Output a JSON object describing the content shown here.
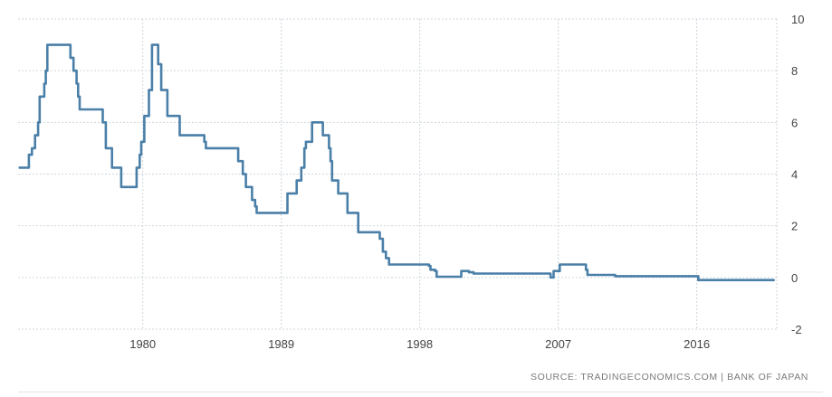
{
  "source_label": "SOURCE: TRADINGECONOMICS.COM | BANK OF JAPAN",
  "colors": {
    "line": "#4a7fa8",
    "grid": "#cfd6dc",
    "text": "#444444"
  },
  "chart_data": {
    "type": "line",
    "title": "",
    "xlabel": "",
    "ylabel": "",
    "xlim": [
      1971.9,
      2021.2
    ],
    "ylim": [
      -2,
      10
    ],
    "x_ticks": [
      1980,
      1989,
      1998,
      2007,
      2016
    ],
    "y_ticks": [
      10,
      8,
      6,
      4,
      2,
      0,
      -2
    ],
    "grid": true,
    "y_axis_side": "right",
    "series": [
      {
        "step": true,
        "points": [
          [
            1972.0,
            4.25
          ],
          [
            1972.5,
            4.25
          ],
          [
            1972.6,
            4.75
          ],
          [
            1972.8,
            5.0
          ],
          [
            1973.0,
            5.5
          ],
          [
            1973.2,
            6.0
          ],
          [
            1973.3,
            7.0
          ],
          [
            1973.6,
            7.5
          ],
          [
            1973.7,
            8.0
          ],
          [
            1973.8,
            9.0
          ],
          [
            1975.1,
            9.0
          ],
          [
            1975.3,
            8.5
          ],
          [
            1975.5,
            8.0
          ],
          [
            1975.7,
            7.5
          ],
          [
            1975.8,
            7.0
          ],
          [
            1975.9,
            6.5
          ],
          [
            1977.2,
            6.5
          ],
          [
            1977.4,
            6.0
          ],
          [
            1977.6,
            5.0
          ],
          [
            1978.0,
            4.25
          ],
          [
            1978.5,
            4.25
          ],
          [
            1978.6,
            3.5
          ],
          [
            1979.3,
            3.5
          ],
          [
            1979.6,
            4.25
          ],
          [
            1979.8,
            4.75
          ],
          [
            1979.9,
            5.25
          ],
          [
            1980.1,
            6.25
          ],
          [
            1980.3,
            6.25
          ],
          [
            1980.4,
            7.25
          ],
          [
            1980.6,
            9.0
          ],
          [
            1980.9,
            9.0
          ],
          [
            1981.0,
            8.25
          ],
          [
            1981.2,
            7.25
          ],
          [
            1981.4,
            7.25
          ],
          [
            1981.6,
            6.25
          ],
          [
            1982.0,
            6.25
          ],
          [
            1982.3,
            6.25
          ],
          [
            1982.4,
            5.5
          ],
          [
            1983.8,
            5.5
          ],
          [
            1984.0,
            5.25
          ],
          [
            1984.1,
            5.0
          ],
          [
            1986.0,
            5.0
          ],
          [
            1986.2,
            4.5
          ],
          [
            1986.5,
            4.0
          ],
          [
            1986.7,
            3.5
          ],
          [
            1986.9,
            3.5
          ],
          [
            1987.1,
            3.0
          ],
          [
            1987.2,
            3.0
          ],
          [
            1987.3,
            2.75
          ],
          [
            1987.4,
            2.5
          ],
          [
            1989.3,
            2.5
          ],
          [
            1989.4,
            3.25
          ],
          [
            1989.8,
            3.25
          ],
          [
            1990.0,
            3.75
          ],
          [
            1990.3,
            4.25
          ],
          [
            1990.5,
            5.0
          ],
          [
            1990.6,
            5.25
          ],
          [
            1990.8,
            5.25
          ],
          [
            1991.0,
            6.0
          ],
          [
            1991.6,
            6.0
          ],
          [
            1991.7,
            5.5
          ],
          [
            1991.9,
            5.5
          ],
          [
            1992.1,
            5.0
          ],
          [
            1992.2,
            4.5
          ],
          [
            1992.3,
            3.75
          ],
          [
            1992.6,
            3.75
          ],
          [
            1992.7,
            3.25
          ],
          [
            1993.2,
            3.25
          ],
          [
            1993.3,
            2.5
          ],
          [
            1993.9,
            2.5
          ],
          [
            1994.0,
            1.75
          ],
          [
            1995.3,
            1.75
          ],
          [
            1995.4,
            1.5
          ],
          [
            1995.6,
            1.0
          ],
          [
            1995.8,
            0.75
          ],
          [
            1996.0,
            0.5
          ],
          [
            1998.4,
            0.5
          ],
          [
            1998.6,
            0.45
          ],
          [
            1998.7,
            0.3
          ],
          [
            1999.0,
            0.25
          ],
          [
            1999.1,
            0.03
          ],
          [
            2000.0,
            0.03
          ],
          [
            2000.5,
            0.03
          ],
          [
            2000.7,
            0.25
          ],
          [
            2001.0,
            0.25
          ],
          [
            2001.2,
            0.2
          ],
          [
            2001.5,
            0.15
          ],
          [
            2006.5,
            0.0
          ],
          [
            2006.6,
            0.0
          ],
          [
            2006.7,
            0.25
          ],
          [
            2007.0,
            0.25
          ],
          [
            2007.1,
            0.5
          ],
          [
            2008.6,
            0.5
          ],
          [
            2008.8,
            0.3
          ],
          [
            2008.9,
            0.1
          ],
          [
            2010.6,
            0.1
          ],
          [
            2010.7,
            0.05
          ],
          [
            2016.0,
            0.05
          ],
          [
            2016.1,
            -0.1
          ],
          [
            2021.0,
            -0.1
          ]
        ]
      }
    ]
  }
}
